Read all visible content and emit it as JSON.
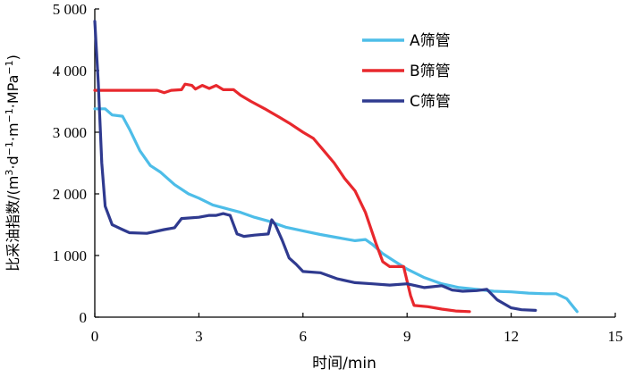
{
  "chart_data": {
    "type": "line",
    "xlabel": "时间/min",
    "ylabel_parts": [
      "比采油指数/(m",
      "3",
      "·d",
      "−1",
      "·m",
      "−1",
      "·MPa",
      "−1",
      ")"
    ],
    "xlim": [
      0,
      15
    ],
    "ylim": [
      0,
      5000
    ],
    "x_ticks": [
      0,
      3,
      6,
      9,
      12,
      15
    ],
    "x_tick_labels": [
      "0",
      "3",
      "6",
      "9",
      "12",
      "15"
    ],
    "y_ticks": [
      0,
      1000,
      2000,
      3000,
      4000,
      5000
    ],
    "y_tick_labels": [
      "0",
      "1 000",
      "2 000",
      "3 000",
      "4 000",
      "5 000"
    ],
    "grid": false,
    "legend_position": "top-right",
    "series": [
      {
        "name": "A筛管",
        "color": "#4dbde8",
        "points": [
          [
            0,
            3380
          ],
          [
            0.3,
            3380
          ],
          [
            0.5,
            3280
          ],
          [
            0.8,
            3260
          ],
          [
            1.0,
            3050
          ],
          [
            1.3,
            2700
          ],
          [
            1.6,
            2460
          ],
          [
            1.9,
            2350
          ],
          [
            2.3,
            2150
          ],
          [
            2.7,
            2000
          ],
          [
            3.0,
            1930
          ],
          [
            3.4,
            1820
          ],
          [
            3.8,
            1760
          ],
          [
            4.2,
            1700
          ],
          [
            4.6,
            1620
          ],
          [
            5.0,
            1560
          ],
          [
            5.5,
            1460
          ],
          [
            6.0,
            1400
          ],
          [
            6.5,
            1340
          ],
          [
            7.0,
            1290
          ],
          [
            7.5,
            1240
          ],
          [
            7.8,
            1260
          ],
          [
            8.0,
            1180
          ],
          [
            8.3,
            1030
          ],
          [
            8.6,
            920
          ],
          [
            9.0,
            780
          ],
          [
            9.5,
            640
          ],
          [
            10.0,
            540
          ],
          [
            10.5,
            480
          ],
          [
            11.0,
            450
          ],
          [
            11.5,
            420
          ],
          [
            12.0,
            410
          ],
          [
            12.5,
            390
          ],
          [
            13.0,
            380
          ],
          [
            13.3,
            380
          ],
          [
            13.6,
            300
          ],
          [
            13.9,
            90
          ]
        ]
      },
      {
        "name": "B筛管",
        "color": "#e8282d",
        "points": [
          [
            0,
            3680
          ],
          [
            1.8,
            3680
          ],
          [
            2.0,
            3640
          ],
          [
            2.2,
            3680
          ],
          [
            2.5,
            3690
          ],
          [
            2.6,
            3780
          ],
          [
            2.8,
            3760
          ],
          [
            2.9,
            3700
          ],
          [
            3.1,
            3760
          ],
          [
            3.3,
            3710
          ],
          [
            3.5,
            3760
          ],
          [
            3.7,
            3690
          ],
          [
            4.0,
            3690
          ],
          [
            4.2,
            3600
          ],
          [
            4.5,
            3500
          ],
          [
            4.9,
            3380
          ],
          [
            5.3,
            3250
          ],
          [
            5.6,
            3150
          ],
          [
            6.0,
            3000
          ],
          [
            6.3,
            2900
          ],
          [
            6.6,
            2700
          ],
          [
            6.9,
            2500
          ],
          [
            7.2,
            2250
          ],
          [
            7.5,
            2050
          ],
          [
            7.8,
            1700
          ],
          [
            8.1,
            1200
          ],
          [
            8.3,
            900
          ],
          [
            8.5,
            820
          ],
          [
            8.9,
            820
          ],
          [
            9.1,
            350
          ],
          [
            9.2,
            190
          ],
          [
            9.6,
            170
          ],
          [
            10.0,
            130
          ],
          [
            10.4,
            100
          ],
          [
            10.8,
            90
          ]
        ]
      },
      {
        "name": "C筛管",
        "color": "#2f3a8f",
        "points": [
          [
            0,
            4800
          ],
          [
            0.1,
            3800
          ],
          [
            0.2,
            2500
          ],
          [
            0.3,
            1800
          ],
          [
            0.5,
            1500
          ],
          [
            0.8,
            1420
          ],
          [
            1.0,
            1370
          ],
          [
            1.5,
            1360
          ],
          [
            2.0,
            1420
          ],
          [
            2.3,
            1450
          ],
          [
            2.5,
            1600
          ],
          [
            3.0,
            1620
          ],
          [
            3.3,
            1650
          ],
          [
            3.5,
            1650
          ],
          [
            3.7,
            1680
          ],
          [
            3.9,
            1650
          ],
          [
            4.0,
            1500
          ],
          [
            4.1,
            1350
          ],
          [
            4.3,
            1310
          ],
          [
            4.6,
            1330
          ],
          [
            5.0,
            1350
          ],
          [
            5.1,
            1580
          ],
          [
            5.2,
            1500
          ],
          [
            5.4,
            1250
          ],
          [
            5.6,
            960
          ],
          [
            5.8,
            860
          ],
          [
            6.0,
            740
          ],
          [
            6.5,
            720
          ],
          [
            7.0,
            620
          ],
          [
            7.5,
            560
          ],
          [
            8.0,
            540
          ],
          [
            8.5,
            520
          ],
          [
            9.0,
            540
          ],
          [
            9.5,
            480
          ],
          [
            10.0,
            510
          ],
          [
            10.3,
            440
          ],
          [
            10.6,
            420
          ],
          [
            11.0,
            430
          ],
          [
            11.3,
            450
          ],
          [
            11.6,
            280
          ],
          [
            12.0,
            150
          ],
          [
            12.3,
            120
          ],
          [
            12.7,
            110
          ]
        ]
      }
    ]
  }
}
